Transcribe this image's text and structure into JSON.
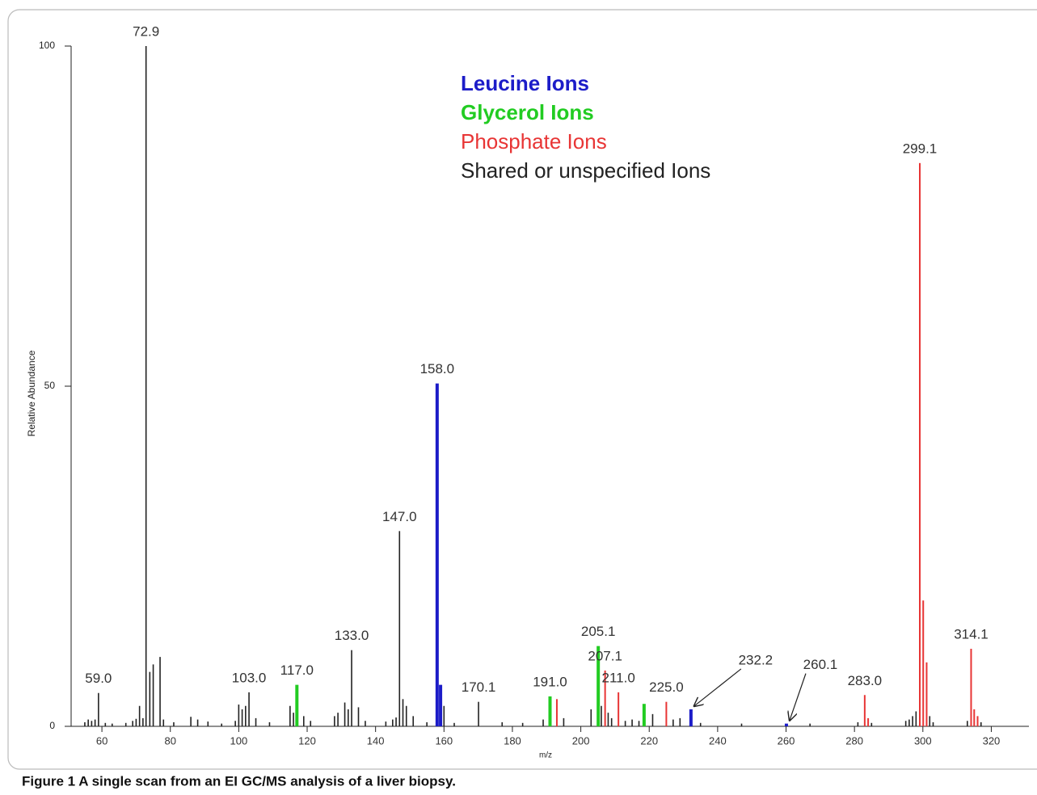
{
  "chart_data": {
    "type": "stick",
    "x_label": "m/z",
    "y_label": "Relative Abundance",
    "caption": "Figure 1 A single scan from an EI GC/MS analysis of a liver biopsy.",
    "xlim": [
      51,
      331
    ],
    "xticks": [
      60,
      80,
      100,
      120,
      140,
      160,
      180,
      200,
      220,
      240,
      260,
      280,
      300,
      320
    ],
    "ylim": [
      0,
      100
    ],
    "yticks": [
      0,
      50,
      100
    ],
    "series": [
      {
        "name": "Leucine Ions",
        "color": "#1c1cc8",
        "x": [
          158.0,
          159,
          232.2,
          260.1
        ],
        "values": [
          50.4,
          6.1,
          2.5,
          0.4
        ],
        "labels": [
          "158.0",
          null,
          "232.2",
          "260.1"
        ]
      },
      {
        "name": "Glycerol Ions",
        "color": "#22cc22",
        "x": [
          117.0,
          191.0,
          205.1,
          218.5
        ],
        "values": [
          6.1,
          4.4,
          11.8,
          3.3
        ],
        "labels": [
          "117.0",
          "191.0",
          "205.1",
          null
        ]
      },
      {
        "name": "Phosphate Ions",
        "color": "#e83535",
        "x": [
          193,
          207.1,
          211.0,
          225.0,
          283.0,
          284,
          299.1,
          300.1,
          301.1,
          314.1,
          315,
          316
        ],
        "values": [
          4.0,
          8.2,
          5.0,
          3.6,
          4.6,
          1.2,
          82.8,
          18.5,
          9.4,
          11.4,
          2.5,
          1.5
        ],
        "labels": [
          null,
          "207.1",
          "211.0",
          "225.0",
          "283.0",
          null,
          "299.1",
          null,
          null,
          "314.1",
          null,
          null
        ]
      },
      {
        "name": "Shared or unspecified Ions",
        "color": "#222222",
        "x": [
          55,
          56,
          57,
          58,
          59.0,
          61,
          63,
          67,
          69,
          70,
          71,
          72,
          72.9,
          74,
          75,
          77,
          78,
          81,
          86,
          88,
          91,
          95,
          99,
          100,
          101,
          102,
          103.0,
          105,
          109,
          115,
          116,
          119,
          121,
          128,
          129,
          131,
          132,
          133.0,
          135,
          137,
          143,
          145,
          146,
          147.0,
          148,
          149,
          151,
          155,
          160,
          163,
          170.1,
          177,
          183,
          189,
          195,
          203,
          206,
          208,
          209,
          213,
          215,
          217,
          221,
          227,
          229,
          235,
          247,
          267,
          281,
          285,
          295,
          296,
          297,
          298,
          302,
          303,
          313,
          317
        ],
        "values": [
          0.6,
          1.0,
          0.8,
          1.0,
          4.9,
          0.5,
          0.4,
          0.5,
          0.8,
          1.1,
          3.0,
          1.2,
          100,
          8.0,
          9.1,
          10.2,
          1.0,
          0.6,
          1.4,
          1.0,
          0.7,
          0.4,
          0.8,
          3.2,
          2.5,
          3.0,
          5.0,
          1.2,
          0.6,
          3.0,
          2.0,
          1.5,
          0.8,
          1.5,
          2.0,
          3.5,
          2.5,
          11.2,
          2.8,
          0.8,
          0.7,
          1.0,
          1.3,
          28.7,
          4.0,
          3.0,
          1.5,
          0.6,
          3.0,
          0.5,
          3.6,
          0.6,
          0.5,
          1.0,
          1.2,
          2.5,
          3.0,
          2.0,
          1.2,
          0.8,
          1.0,
          0.8,
          1.8,
          1.0,
          1.2,
          0.5,
          0.4,
          0.4,
          0.6,
          0.5,
          0.8,
          1.0,
          1.5,
          2.2,
          1.5,
          0.6,
          0.8,
          0.6
        ],
        "labels": [
          null,
          null,
          null,
          null,
          "59.0",
          null,
          null,
          null,
          null,
          null,
          null,
          null,
          "72.9",
          null,
          null,
          null,
          null,
          null,
          null,
          null,
          null,
          null,
          null,
          null,
          null,
          null,
          "103.0",
          null,
          null,
          null,
          null,
          null,
          null,
          null,
          null,
          null,
          null,
          "133.0",
          null,
          null,
          null,
          null,
          null,
          "147.0",
          null,
          null,
          null,
          null,
          null,
          null,
          "170.1",
          null,
          null,
          null,
          null,
          null,
          null,
          null,
          null,
          null,
          null,
          null,
          null,
          null,
          null,
          null,
          null,
          null,
          null,
          null,
          null,
          null,
          null,
          null,
          null,
          null,
          null,
          null
        ]
      }
    ]
  }
}
